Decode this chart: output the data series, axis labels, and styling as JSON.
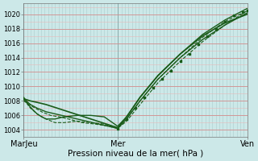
{
  "title": "Pression niveau de la mer( hPa )",
  "xtick_labels": [
    "MarJeu",
    "Mer",
    "Ven"
  ],
  "xtick_positions": [
    0.0,
    0.42,
    1.0
  ],
  "ylim": [
    1003.0,
    1021.5
  ],
  "yticks": [
    1004,
    1006,
    1008,
    1010,
    1012,
    1014,
    1016,
    1018,
    1020
  ],
  "bg_color": "#cce8e8",
  "grid_h_color": "#e8b8b8",
  "grid_v_color": "#aacece",
  "line_color": "#1a5c1a",
  "lines": [
    {
      "x": [
        0.0,
        0.03,
        0.06,
        0.1,
        0.42,
        0.46,
        0.52,
        0.6,
        0.7,
        0.8,
        0.9,
        1.0
      ],
      "y": [
        1008.3,
        1008.0,
        1007.8,
        1007.5,
        1004.3,
        1005.8,
        1008.5,
        1011.5,
        1014.5,
        1017.0,
        1018.8,
        1020.0
      ],
      "ls": "-",
      "lw": 1.2
    },
    {
      "x": [
        0.0,
        0.03,
        0.06,
        0.1,
        0.42,
        0.46,
        0.52,
        0.6,
        0.7,
        0.8,
        0.9,
        1.0
      ],
      "y": [
        1008.3,
        1007.5,
        1007.0,
        1006.5,
        1004.2,
        1005.5,
        1008.0,
        1011.0,
        1014.0,
        1016.5,
        1018.5,
        1020.2
      ],
      "ls": "-",
      "lw": 1.0
    },
    {
      "x": [
        0.0,
        0.03,
        0.06,
        0.1,
        0.14,
        0.18,
        0.24,
        0.3,
        0.36,
        0.42,
        0.46,
        0.52,
        0.6,
        0.7,
        0.8,
        0.9,
        1.0
      ],
      "y": [
        1008.2,
        1007.0,
        1006.2,
        1005.5,
        1005.0,
        1005.0,
        1005.2,
        1005.0,
        1004.8,
        1004.2,
        1005.2,
        1007.5,
        1010.5,
        1013.5,
        1016.2,
        1018.5,
        1020.5
      ],
      "ls": "--",
      "lw": 0.8
    },
    {
      "x": [
        0.0,
        0.02,
        0.04,
        0.06,
        0.08,
        0.1,
        0.14,
        0.18,
        0.24,
        0.3,
        0.36,
        0.42,
        0.46,
        0.52,
        0.6,
        0.7,
        0.8,
        0.9,
        1.0
      ],
      "y": [
        1008.5,
        1007.5,
        1006.8,
        1006.2,
        1005.8,
        1005.5,
        1005.5,
        1005.8,
        1006.0,
        1006.0,
        1005.8,
        1004.5,
        1005.8,
        1008.5,
        1011.5,
        1014.5,
        1017.2,
        1019.2,
        1020.8
      ],
      "ls": "-",
      "lw": 1.0
    },
    {
      "x": [
        0.0,
        0.04,
        0.08,
        0.12,
        0.16,
        0.2,
        0.26,
        0.32,
        0.38,
        0.42,
        0.46,
        0.52,
        0.6,
        0.7,
        0.8,
        0.9,
        1.0
      ],
      "y": [
        1008.0,
        1007.2,
        1006.5,
        1006.0,
        1005.8,
        1005.5,
        1005.0,
        1004.8,
        1004.5,
        1004.2,
        1005.5,
        1008.0,
        1011.0,
        1014.0,
        1016.8,
        1019.0,
        1020.5
      ],
      "ls": "--",
      "lw": 0.8
    }
  ],
  "dots_x": [
    0.42,
    0.46,
    0.5,
    0.54,
    0.58,
    0.62,
    0.66,
    0.7,
    0.74,
    0.78,
    0.82,
    0.86,
    0.9,
    0.94,
    0.98,
    1.0
  ],
  "dots_y": [
    1004.2,
    1005.5,
    1007.0,
    1008.5,
    1009.8,
    1011.0,
    1012.2,
    1013.5,
    1014.5,
    1015.8,
    1017.0,
    1018.0,
    1019.0,
    1019.8,
    1020.3,
    1020.5
  ]
}
